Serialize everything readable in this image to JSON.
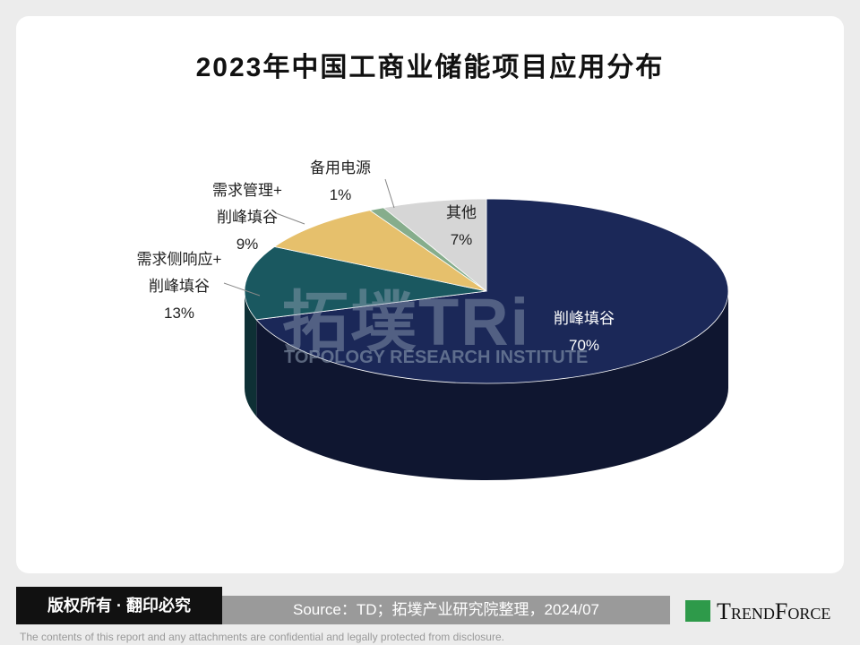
{
  "chart_data": {
    "type": "pie3d",
    "title": "2023年中国工商业储能项目应用分布",
    "categories": [
      "削峰填谷",
      "需求侧响应+\n削峰填谷",
      "需求管理+\n削峰填谷",
      "备用电源",
      "其他"
    ],
    "values": [
      70,
      13,
      9,
      1,
      7
    ],
    "value_labels": [
      "70%",
      "13%",
      "9%",
      "1%",
      "7%"
    ],
    "colors": [
      "#1b2858",
      "#1a5860",
      "#e6c06c",
      "#86ad8c",
      "#d6d6d6"
    ]
  },
  "watermark": {
    "logo": "拓墣TRi",
    "name": "TOPOLOGY RESEARCH INSTITUTE"
  },
  "footer": {
    "copyright": "版权所有 · 翻印必究",
    "source": "Source：TD；拓墣产业研究院整理，2024/07",
    "brand": "TrendForce",
    "disclaimer": "The contents of this report and any attachments are confidential and legally protected from disclosure."
  }
}
